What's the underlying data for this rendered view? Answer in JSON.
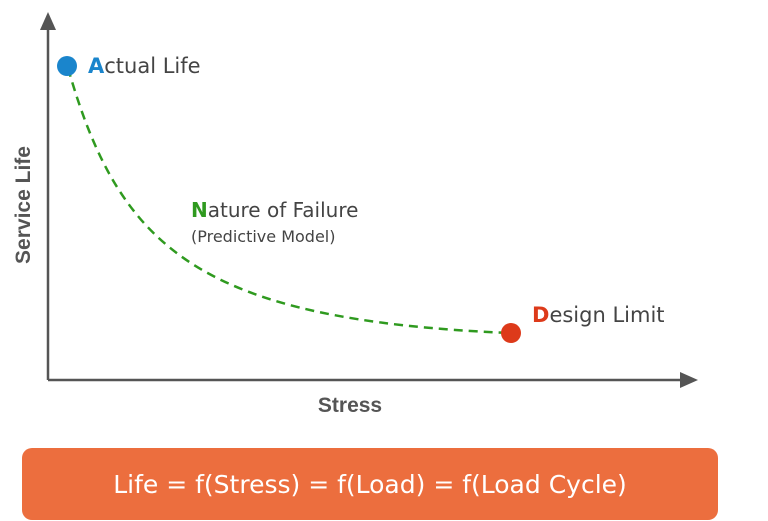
{
  "axes": {
    "y_label": "Service Life",
    "x_label": "Stress"
  },
  "points": {
    "actual": {
      "initial": "A",
      "rest": "ctual Life",
      "color": "#1a85cc"
    },
    "design": {
      "initial": "D",
      "rest": "esign Limit",
      "color": "#dd3a1a"
    }
  },
  "curve": {
    "initial": "N",
    "rest": "ature of Failure",
    "subtitle": "(Predictive Model)",
    "color": "#2f9a1f",
    "style": "dashed"
  },
  "formula": {
    "text": "Life = f(Stress) = f(Load) = f(Load Cycle)",
    "background": "#ec6e3e"
  }
}
